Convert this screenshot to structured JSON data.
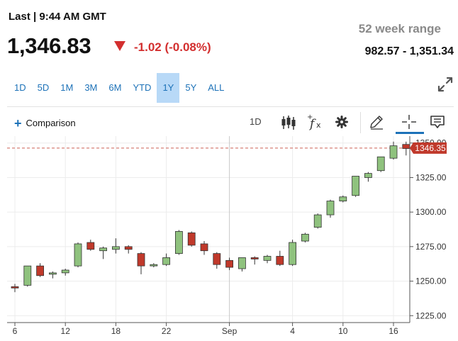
{
  "quote": {
    "last_label": "Last | 9:44 AM GMT",
    "price": "1,346.83",
    "change": "-1.02 (-0.08%)",
    "range_title": "52 week range",
    "range_value": "982.57 - 1,351.34",
    "down_color": "#d32f2f"
  },
  "periods": [
    {
      "label": "1D",
      "active": false
    },
    {
      "label": "5D",
      "active": false
    },
    {
      "label": "1M",
      "active": false
    },
    {
      "label": "3M",
      "active": false
    },
    {
      "label": "6M",
      "active": false
    },
    {
      "label": "YTD",
      "active": false
    },
    {
      "label": "1Y",
      "active": true
    },
    {
      "label": "5Y",
      "active": false
    },
    {
      "label": "ALL",
      "active": false
    }
  ],
  "toolbar": {
    "comparison_label": "Comparison",
    "interval_label": "1D",
    "icons": [
      "candlestick-icon",
      "function-icon",
      "gear-icon",
      "pencil-icon",
      "crosshair-icon",
      "comment-icon"
    ],
    "expand_icon": "expand-icon"
  },
  "chart_data": {
    "type": "candlestick",
    "ylim": [
      1220,
      1355
    ],
    "y_ticks": [
      "1225.00",
      "1250.00",
      "1275.00",
      "1300.00",
      "1325.00",
      "1350.00"
    ],
    "x_tick_labels": [
      "6",
      "12",
      "18",
      "22",
      "Sep",
      "4",
      "10",
      "16"
    ],
    "last_price_label": "1346.35",
    "last_price": 1346.35,
    "up_color": "#8fc27e",
    "down_color": "#c0392b",
    "candles": [
      {
        "o": 1246,
        "h": 1248,
        "l": 1242,
        "c": 1245
      },
      {
        "o": 1247,
        "h": 1261,
        "l": 1246,
        "c": 1261
      },
      {
        "o": 1261,
        "h": 1263,
        "l": 1253,
        "c": 1254
      },
      {
        "o": 1255,
        "h": 1257,
        "l": 1252,
        "c": 1256
      },
      {
        "o": 1256,
        "h": 1259,
        "l": 1254,
        "c": 1258
      },
      {
        "o": 1261,
        "h": 1278,
        "l": 1260,
        "c": 1277
      },
      {
        "o": 1278,
        "h": 1280,
        "l": 1272,
        "c": 1273
      },
      {
        "o": 1272,
        "h": 1275,
        "l": 1266,
        "c": 1274
      },
      {
        "o": 1273,
        "h": 1281,
        "l": 1270,
        "c": 1275
      },
      {
        "o": 1275,
        "h": 1276,
        "l": 1270,
        "c": 1273
      },
      {
        "o": 1270,
        "h": 1271,
        "l": 1255,
        "c": 1261
      },
      {
        "o": 1261,
        "h": 1263,
        "l": 1260,
        "c": 1262
      },
      {
        "o": 1262,
        "h": 1270,
        "l": 1261,
        "c": 1267
      },
      {
        "o": 1270,
        "h": 1287,
        "l": 1269,
        "c": 1286
      },
      {
        "o": 1285,
        "h": 1286,
        "l": 1275,
        "c": 1276
      },
      {
        "o": 1277,
        "h": 1279,
        "l": 1269,
        "c": 1272
      },
      {
        "o": 1270,
        "h": 1271,
        "l": 1259,
        "c": 1262
      },
      {
        "o": 1265,
        "h": 1267,
        "l": 1258,
        "c": 1260
      },
      {
        "o": 1259,
        "h": 1267,
        "l": 1257,
        "c": 1267
      },
      {
        "o": 1267,
        "h": 1268,
        "l": 1262,
        "c": 1266
      },
      {
        "o": 1265,
        "h": 1269,
        "l": 1263,
        "c": 1268
      },
      {
        "o": 1268,
        "h": 1272,
        "l": 1261,
        "c": 1262
      },
      {
        "o": 1262,
        "h": 1280,
        "l": 1261,
        "c": 1278
      },
      {
        "o": 1279,
        "h": 1285,
        "l": 1278,
        "c": 1284
      },
      {
        "o": 1289,
        "h": 1299,
        "l": 1288,
        "c": 1298
      },
      {
        "o": 1298,
        "h": 1309,
        "l": 1296,
        "c": 1308
      },
      {
        "o": 1308,
        "h": 1312,
        "l": 1307,
        "c": 1311
      },
      {
        "o": 1312,
        "h": 1326,
        "l": 1311,
        "c": 1326
      },
      {
        "o": 1325,
        "h": 1329,
        "l": 1322,
        "c": 1328
      },
      {
        "o": 1330,
        "h": 1340,
        "l": 1329,
        "c": 1340
      },
      {
        "o": 1339,
        "h": 1351,
        "l": 1338,
        "c": 1348
      },
      {
        "o": 1349,
        "h": 1351,
        "l": 1341,
        "c": 1346
      }
    ]
  }
}
